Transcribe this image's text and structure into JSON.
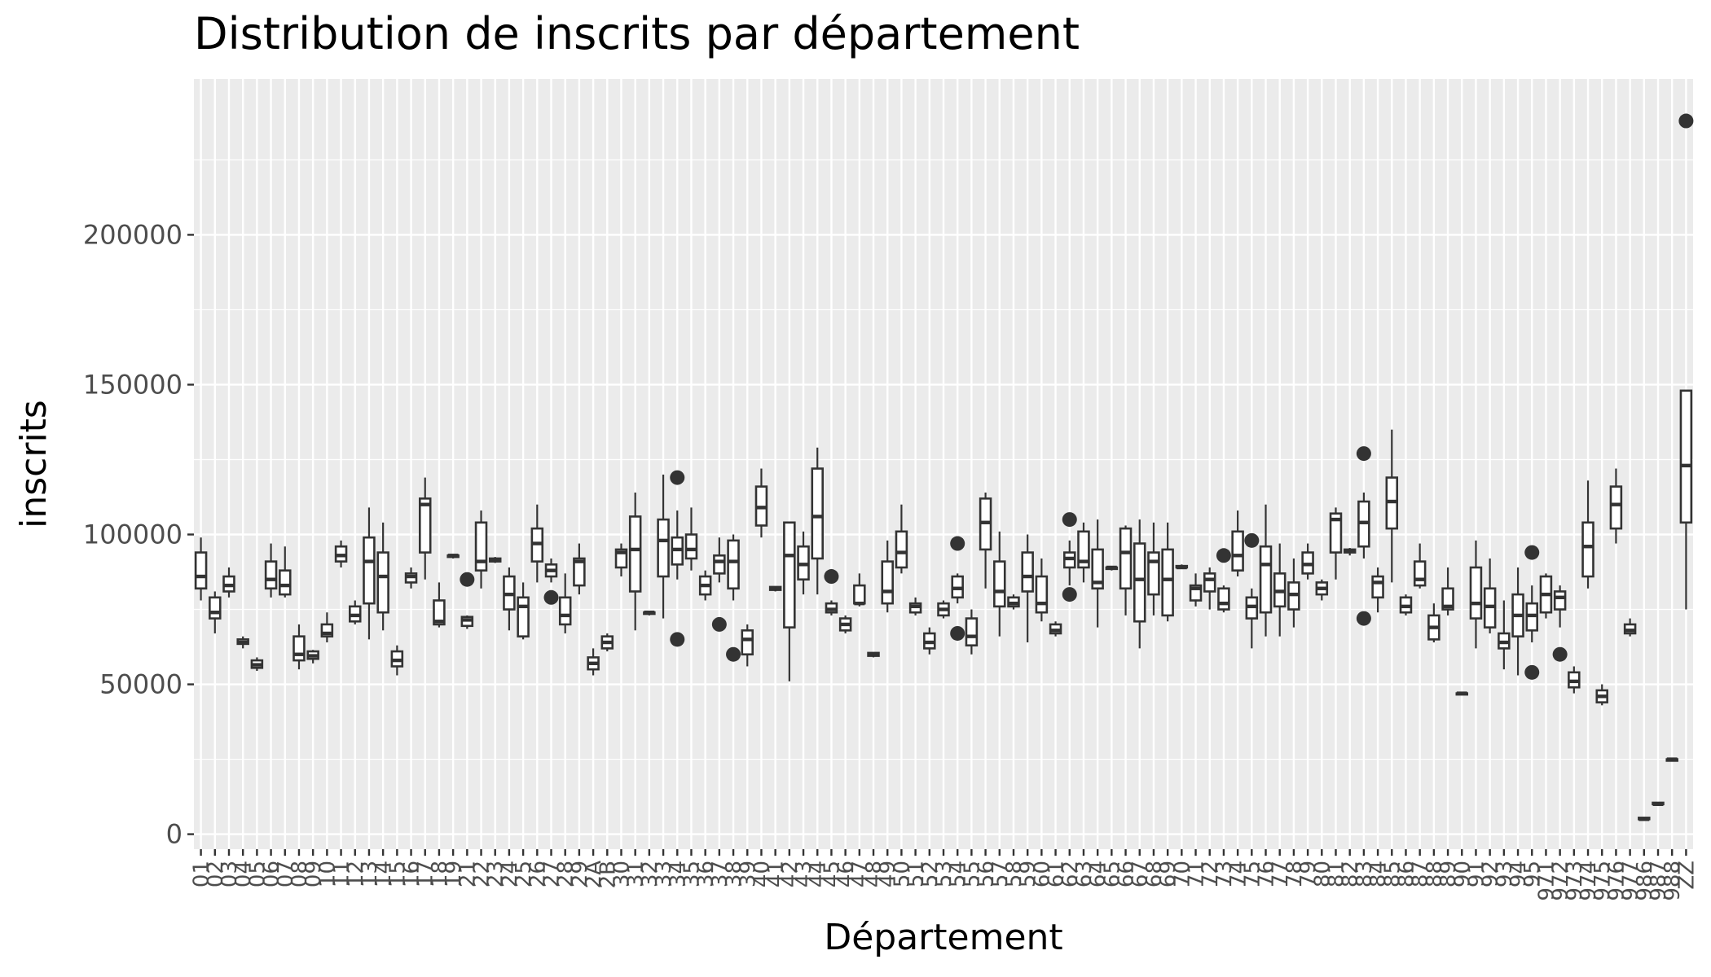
{
  "chart_data": {
    "type": "boxplot",
    "title": "Distribution de inscrits par département",
    "xlabel": "Département",
    "ylabel": "inscrits",
    "ylim": [
      -5000,
      252000
    ],
    "yticks": [
      0,
      50000,
      100000,
      150000,
      200000
    ],
    "ytick_labels": [
      "0",
      "50000",
      "100000",
      "150000",
      "200000"
    ],
    "grid": true,
    "legend": "none",
    "colors": {
      "panel": "#ebebeb",
      "grid": "#ffffff",
      "box_line": "#333333",
      "box_fill": "#ffffff",
      "tick": "#333333",
      "tick_label": "#4d4d4d"
    },
    "categories": [
      "01",
      "02",
      "03",
      "04",
      "05",
      "06",
      "07",
      "08",
      "09",
      "10",
      "11",
      "12",
      "13",
      "14",
      "15",
      "16",
      "17",
      "18",
      "19",
      "21",
      "22",
      "23",
      "24",
      "25",
      "26",
      "27",
      "28",
      "29",
      "2A",
      "2B",
      "30",
      "31",
      "32",
      "33",
      "34",
      "35",
      "36",
      "37",
      "38",
      "39",
      "40",
      "41",
      "42",
      "43",
      "44",
      "45",
      "46",
      "47",
      "48",
      "49",
      "50",
      "51",
      "52",
      "53",
      "54",
      "55",
      "56",
      "57",
      "58",
      "59",
      "60",
      "61",
      "62",
      "63",
      "64",
      "65",
      "66",
      "67",
      "68",
      "69",
      "70",
      "71",
      "72",
      "73",
      "74",
      "75",
      "76",
      "77",
      "78",
      "79",
      "80",
      "81",
      "82",
      "83",
      "84",
      "85",
      "86",
      "87",
      "88",
      "89",
      "90",
      "91",
      "92",
      "93",
      "94",
      "95",
      "971",
      "972",
      "973",
      "974",
      "975",
      "976",
      "977",
      "986",
      "987",
      "988",
      "ZZ"
    ],
    "boxes": [
      {
        "min": 78000,
        "q1": 82000,
        "median": 86000,
        "q3": 94000,
        "max": 99000,
        "outliers": []
      },
      {
        "min": 67000,
        "q1": 72000,
        "median": 74000,
        "q3": 79000,
        "max": 81000,
        "outliers": []
      },
      {
        "min": 79000,
        "q1": 81000,
        "median": 83000,
        "q3": 86000,
        "max": 89000,
        "outliers": []
      },
      {
        "min": 62000,
        "q1": 63500,
        "median": 64000,
        "q3": 65000,
        "max": 66000,
        "outliers": []
      },
      {
        "min": 54500,
        "q1": 55500,
        "median": 56500,
        "q3": 58000,
        "max": 59000,
        "outliers": []
      },
      {
        "min": 79000,
        "q1": 82000,
        "median": 85000,
        "q3": 91000,
        "max": 97000,
        "outliers": []
      },
      {
        "min": 79000,
        "q1": 80000,
        "median": 83000,
        "q3": 88000,
        "max": 96000,
        "outliers": []
      },
      {
        "min": 55000,
        "q1": 58000,
        "median": 60000,
        "q3": 66000,
        "max": 70000,
        "outliers": []
      },
      {
        "min": 57000,
        "q1": 58500,
        "median": 59500,
        "q3": 61000,
        "max": 61500,
        "outliers": []
      },
      {
        "min": 64000,
        "q1": 66000,
        "median": 67000,
        "q3": 70000,
        "max": 74000,
        "outliers": []
      },
      {
        "min": 89000,
        "q1": 91000,
        "median": 93000,
        "q3": 96000,
        "max": 98000,
        "outliers": []
      },
      {
        "min": 70000,
        "q1": 71000,
        "median": 73000,
        "q3": 76000,
        "max": 78000,
        "outliers": []
      },
      {
        "min": 65000,
        "q1": 77000,
        "median": 91000,
        "q3": 99000,
        "max": 109000,
        "outliers": []
      },
      {
        "min": 68000,
        "q1": 74000,
        "median": 86000,
        "q3": 94000,
        "max": 104000,
        "outliers": []
      },
      {
        "min": 53000,
        "q1": 56000,
        "median": 58000,
        "q3": 61000,
        "max": 63000,
        "outliers": []
      },
      {
        "min": 82000,
        "q1": 84000,
        "median": 86000,
        "q3": 87000,
        "max": 89000,
        "outliers": []
      },
      {
        "min": 85000,
        "q1": 94000,
        "median": 110000,
        "q3": 112000,
        "max": 119000,
        "outliers": []
      },
      {
        "min": 69000,
        "q1": 70000,
        "median": 71000,
        "q3": 78000,
        "max": 84000,
        "outliers": []
      },
      {
        "min": 92000,
        "q1": 92500,
        "median": 93000,
        "q3": 93000,
        "max": 93500,
        "outliers": []
      },
      {
        "min": 68500,
        "q1": 69500,
        "median": 71500,
        "q3": 72500,
        "max": 73000,
        "outliers": [
          85000
        ]
      },
      {
        "min": 82000,
        "q1": 88000,
        "median": 91000,
        "q3": 104000,
        "max": 108000,
        "outliers": []
      },
      {
        "min": 90500,
        "q1": 91000,
        "median": 91500,
        "q3": 92000,
        "max": 92500,
        "outliers": []
      },
      {
        "min": 68000,
        "q1": 75000,
        "median": 80000,
        "q3": 86000,
        "max": 89000,
        "outliers": []
      },
      {
        "min": 65000,
        "q1": 66000,
        "median": 76000,
        "q3": 79000,
        "max": 84000,
        "outliers": []
      },
      {
        "min": 84000,
        "q1": 91000,
        "median": 97000,
        "q3": 102000,
        "max": 110000,
        "outliers": []
      },
      {
        "min": 84000,
        "q1": 86000,
        "median": 88000,
        "q3": 90000,
        "max": 92000,
        "outliers": [
          79000
        ]
      },
      {
        "min": 67000,
        "q1": 70000,
        "median": 73000,
        "q3": 79000,
        "max": 87000,
        "outliers": []
      },
      {
        "min": 80000,
        "q1": 83000,
        "median": 91000,
        "q3": 92000,
        "max": 97000,
        "outliers": []
      },
      {
        "min": 53000,
        "q1": 55000,
        "median": 57000,
        "q3": 59000,
        "max": 62000,
        "outliers": []
      },
      {
        "min": 61000,
        "q1": 62000,
        "median": 64000,
        "q3": 66000,
        "max": 67000,
        "outliers": []
      },
      {
        "min": 86000,
        "q1": 89000,
        "median": 94000,
        "q3": 95000,
        "max": 97000,
        "outliers": []
      },
      {
        "min": 68000,
        "q1": 81000,
        "median": 95000,
        "q3": 106000,
        "max": 114000,
        "outliers": []
      },
      {
        "min": 73000,
        "q1": 73500,
        "median": 74000,
        "q3": 74000,
        "max": 74500,
        "outliers": []
      },
      {
        "min": 72000,
        "q1": 86000,
        "median": 98000,
        "q3": 105000,
        "max": 120000,
        "outliers": []
      },
      {
        "min": 85000,
        "q1": 90000,
        "median": 95000,
        "q3": 99000,
        "max": 108000,
        "outliers": [
          65000,
          119000
        ]
      },
      {
        "min": 88000,
        "q1": 92000,
        "median": 95000,
        "q3": 100000,
        "max": 109000,
        "outliers": []
      },
      {
        "min": 78000,
        "q1": 80000,
        "median": 83000,
        "q3": 86000,
        "max": 88000,
        "outliers": []
      },
      {
        "min": 84000,
        "q1": 87000,
        "median": 91000,
        "q3": 93000,
        "max": 99000,
        "outliers": [
          70000
        ]
      },
      {
        "min": 78000,
        "q1": 82000,
        "median": 91000,
        "q3": 98000,
        "max": 100000,
        "outliers": [
          60000
        ]
      },
      {
        "min": 56000,
        "q1": 60000,
        "median": 65000,
        "q3": 68000,
        "max": 70000,
        "outliers": []
      },
      {
        "min": 99000,
        "q1": 103000,
        "median": 109000,
        "q3": 116000,
        "max": 122000,
        "outliers": []
      },
      {
        "min": 81000,
        "q1": 81500,
        "median": 82000,
        "q3": 82500,
        "max": 82500,
        "outliers": []
      },
      {
        "min": 51000,
        "q1": 69000,
        "median": 93000,
        "q3": 104000,
        "max": 104000,
        "outliers": []
      },
      {
        "min": 80000,
        "q1": 85000,
        "median": 90000,
        "q3": 96000,
        "max": 101000,
        "outliers": []
      },
      {
        "min": 80000,
        "q1": 92000,
        "median": 106000,
        "q3": 122000,
        "max": 129000,
        "outliers": []
      },
      {
        "min": 73000,
        "q1": 74000,
        "median": 75000,
        "q3": 77000,
        "max": 78000,
        "outliers": [
          86000
        ]
      },
      {
        "min": 67000,
        "q1": 68000,
        "median": 70000,
        "q3": 72000,
        "max": 73000,
        "outliers": []
      },
      {
        "min": 76000,
        "q1": 77000,
        "median": 77000,
        "q3": 83000,
        "max": 87000,
        "outliers": []
      },
      {
        "min": 59000,
        "q1": 59500,
        "median": 60000,
        "q3": 60500,
        "max": 60500,
        "outliers": []
      },
      {
        "min": 74000,
        "q1": 77000,
        "median": 81000,
        "q3": 91000,
        "max": 98000,
        "outliers": []
      },
      {
        "min": 87000,
        "q1": 89000,
        "median": 94000,
        "q3": 101000,
        "max": 110000,
        "outliers": []
      },
      {
        "min": 73000,
        "q1": 74000,
        "median": 76000,
        "q3": 77000,
        "max": 79000,
        "outliers": []
      },
      {
        "min": 60000,
        "q1": 62000,
        "median": 64000,
        "q3": 67000,
        "max": 69000,
        "outliers": []
      },
      {
        "min": 72000,
        "q1": 73000,
        "median": 75000,
        "q3": 77000,
        "max": 78000,
        "outliers": []
      },
      {
        "min": 77000,
        "q1": 79000,
        "median": 82000,
        "q3": 86000,
        "max": 87000,
        "outliers": [
          67000,
          97000
        ]
      },
      {
        "min": 60000,
        "q1": 63000,
        "median": 66000,
        "q3": 72000,
        "max": 75000,
        "outliers": []
      },
      {
        "min": 82000,
        "q1": 95000,
        "median": 104000,
        "q3": 112000,
        "max": 114000,
        "outliers": []
      },
      {
        "min": 66000,
        "q1": 76000,
        "median": 81000,
        "q3": 91000,
        "max": 101000,
        "outliers": []
      },
      {
        "min": 75000,
        "q1": 76000,
        "median": 77000,
        "q3": 79000,
        "max": 80000,
        "outliers": []
      },
      {
        "min": 64000,
        "q1": 81000,
        "median": 86000,
        "q3": 94000,
        "max": 100000,
        "outliers": []
      },
      {
        "min": 71000,
        "q1": 74000,
        "median": 77000,
        "q3": 86000,
        "max": 92000,
        "outliers": []
      },
      {
        "min": 66000,
        "q1": 67000,
        "median": 68000,
        "q3": 70000,
        "max": 71000,
        "outliers": []
      },
      {
        "min": 83000,
        "q1": 89000,
        "median": 92000,
        "q3": 94000,
        "max": 98000,
        "outliers": [
          80000,
          105000
        ]
      },
      {
        "min": 84000,
        "q1": 89000,
        "median": 91000,
        "q3": 101000,
        "max": 104000,
        "outliers": []
      },
      {
        "min": 69000,
        "q1": 82000,
        "median": 84000,
        "q3": 95000,
        "max": 105000,
        "outliers": []
      },
      {
        "min": 88000,
        "q1": 88500,
        "median": 89000,
        "q3": 89000,
        "max": 89500,
        "outliers": []
      },
      {
        "min": 73000,
        "q1": 82000,
        "median": 94000,
        "q3": 102000,
        "max": 103000,
        "outliers": []
      },
      {
        "min": 62000,
        "q1": 71000,
        "median": 85000,
        "q3": 97000,
        "max": 105000,
        "outliers": []
      },
      {
        "min": 73000,
        "q1": 80000,
        "median": 91000,
        "q3": 94000,
        "max": 104000,
        "outliers": []
      },
      {
        "min": 71000,
        "q1": 73000,
        "median": 85000,
        "q3": 95000,
        "max": 104000,
        "outliers": []
      },
      {
        "min": 88500,
        "q1": 89000,
        "median": 89000,
        "q3": 89500,
        "max": 90000,
        "outliers": []
      },
      {
        "min": 76000,
        "q1": 78000,
        "median": 82000,
        "q3": 83000,
        "max": 87000,
        "outliers": []
      },
      {
        "min": 75000,
        "q1": 81000,
        "median": 85000,
        "q3": 87000,
        "max": 89000,
        "outliers": []
      },
      {
        "min": 74000,
        "q1": 75000,
        "median": 77000,
        "q3": 82000,
        "max": 83000,
        "outliers": [
          93000
        ]
      },
      {
        "min": 86000,
        "q1": 88000,
        "median": 93000,
        "q3": 101000,
        "max": 108000,
        "outliers": []
      },
      {
        "min": 62000,
        "q1": 72000,
        "median": 76000,
        "q3": 79000,
        "max": 82000,
        "outliers": [
          98000
        ]
      },
      {
        "min": 66000,
        "q1": 74000,
        "median": 90000,
        "q3": 96000,
        "max": 110000,
        "outliers": []
      },
      {
        "min": 66000,
        "q1": 76000,
        "median": 81000,
        "q3": 87000,
        "max": 97000,
        "outliers": []
      },
      {
        "min": 69000,
        "q1": 75000,
        "median": 80000,
        "q3": 84000,
        "max": 92000,
        "outliers": []
      },
      {
        "min": 85000,
        "q1": 87000,
        "median": 90000,
        "q3": 94000,
        "max": 97000,
        "outliers": []
      },
      {
        "min": 78000,
        "q1": 80000,
        "median": 82000,
        "q3": 84000,
        "max": 85000,
        "outliers": []
      },
      {
        "min": 85000,
        "q1": 94000,
        "median": 105000,
        "q3": 107000,
        "max": 109000,
        "outliers": []
      },
      {
        "min": 93000,
        "q1": 94000,
        "median": 94500,
        "q3": 95000,
        "max": 95500,
        "outliers": []
      },
      {
        "min": 92000,
        "q1": 96000,
        "median": 104000,
        "q3": 111000,
        "max": 114000,
        "outliers": [
          72000,
          127000
        ]
      },
      {
        "min": 74000,
        "q1": 79000,
        "median": 84000,
        "q3": 86000,
        "max": 89000,
        "outliers": []
      },
      {
        "min": 84000,
        "q1": 102000,
        "median": 111000,
        "q3": 119000,
        "max": 135000,
        "outliers": []
      },
      {
        "min": 73000,
        "q1": 74000,
        "median": 76000,
        "q3": 79000,
        "max": 80000,
        "outliers": []
      },
      {
        "min": 82000,
        "q1": 83000,
        "median": 85000,
        "q3": 91000,
        "max": 97000,
        "outliers": []
      },
      {
        "min": 64000,
        "q1": 65000,
        "median": 69000,
        "q3": 73000,
        "max": 77000,
        "outliers": []
      },
      {
        "min": 73000,
        "q1": 75000,
        "median": 76000,
        "q3": 82000,
        "max": 89000,
        "outliers": []
      },
      {
        "min": 47000,
        "q1": 47000,
        "median": 47000,
        "q3": 47000,
        "max": 47000,
        "outliers": []
      },
      {
        "min": 62000,
        "q1": 72000,
        "median": 77000,
        "q3": 89000,
        "max": 98000,
        "outliers": []
      },
      {
        "min": 67000,
        "q1": 69000,
        "median": 76000,
        "q3": 82000,
        "max": 92000,
        "outliers": []
      },
      {
        "min": 55000,
        "q1": 62000,
        "median": 64000,
        "q3": 67000,
        "max": 78000,
        "outliers": []
      },
      {
        "min": 53000,
        "q1": 66000,
        "median": 73000,
        "q3": 80000,
        "max": 89000,
        "outliers": []
      },
      {
        "min": 64000,
        "q1": 68000,
        "median": 73000,
        "q3": 77000,
        "max": 83000,
        "outliers": [
          54000,
          94000
        ]
      },
      {
        "min": 72000,
        "q1": 74000,
        "median": 80000,
        "q3": 86000,
        "max": 87000,
        "outliers": []
      },
      {
        "min": 69000,
        "q1": 75000,
        "median": 79000,
        "q3": 81000,
        "max": 83000,
        "outliers": [
          60000
        ]
      },
      {
        "min": 47000,
        "q1": 49000,
        "median": 51000,
        "q3": 54000,
        "max": 56000,
        "outliers": []
      },
      {
        "min": 82000,
        "q1": 86000,
        "median": 96000,
        "q3": 104000,
        "max": 118000,
        "outliers": []
      },
      {
        "min": 43000,
        "q1": 44000,
        "median": 46000,
        "q3": 48000,
        "max": 50000,
        "outliers": []
      },
      {
        "min": 97000,
        "q1": 102000,
        "median": 110000,
        "q3": 116000,
        "max": 122000,
        "outliers": []
      },
      {
        "min": 66000,
        "q1": 67000,
        "median": 68000,
        "q3": 70000,
        "max": 72000,
        "outliers": []
      },
      {
        "min": 5000,
        "q1": 5000,
        "median": 5000,
        "q3": 5500,
        "max": 5500,
        "outliers": []
      },
      {
        "min": 10000,
        "q1": 10000,
        "median": 10000,
        "q3": 10500,
        "max": 10500,
        "outliers": []
      },
      {
        "min": 24500,
        "q1": 24500,
        "median": 25000,
        "q3": 25000,
        "max": 25000,
        "outliers": []
      },
      {
        "min": 75000,
        "q1": 104000,
        "median": 123000,
        "q3": 148000,
        "max": 148000,
        "outliers": [
          238000
        ]
      }
    ]
  }
}
